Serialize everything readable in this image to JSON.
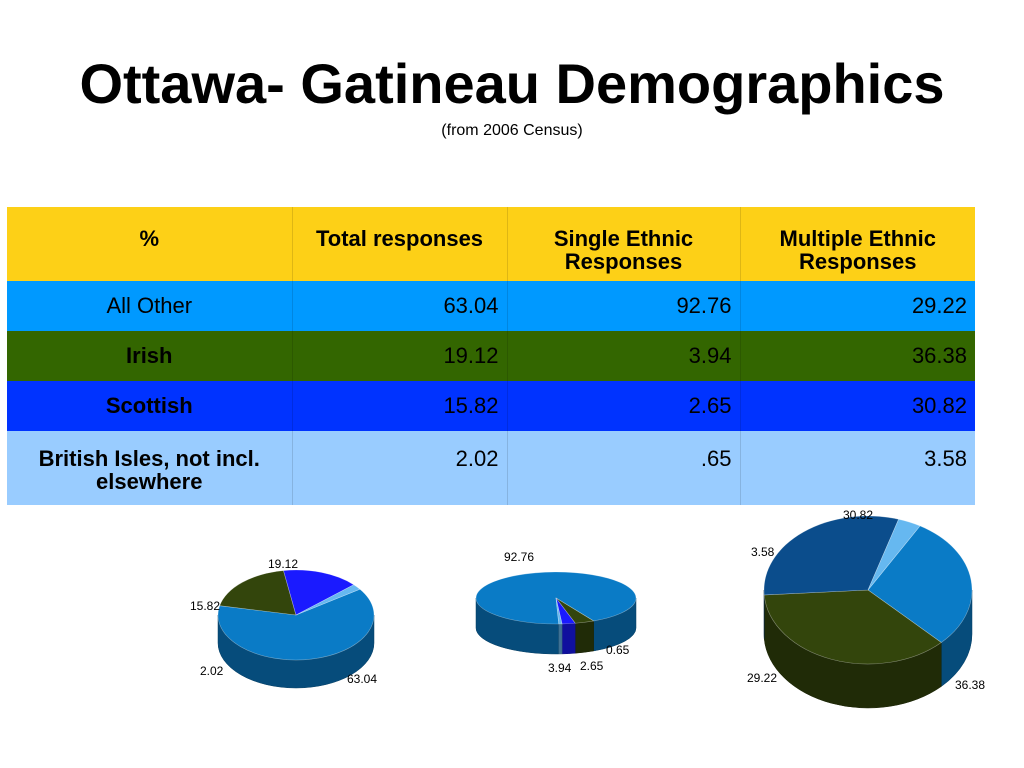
{
  "slide": {
    "title": "Ottawa- Gatineau Demographics",
    "subtitle": "(from 2006 Census)"
  },
  "colors": {
    "header_bg": "#fdd017",
    "row_bg": [
      "#0099ff",
      "#336600",
      "#0033ff",
      "#99ccff"
    ],
    "slice_all_other": "#0a7bc6",
    "slice_irish": "#33450c",
    "slice_scottish": "#1a1aff",
    "slice_british": "#66b8f0",
    "slice_scottish_chart3": "#0b4d8c"
  },
  "table": {
    "headers": [
      "%",
      "Total responses",
      "Single Ethnic\nResponses",
      "Multiple Ethnic\nResponses"
    ],
    "rows": [
      {
        "label": "All Other",
        "bold": false,
        "values": [
          "63.04",
          "92.76",
          "29.22"
        ]
      },
      {
        "label": "Irish",
        "bold": true,
        "values": [
          "19.12",
          "3.94",
          "36.38"
        ]
      },
      {
        "label": "Scottish",
        "bold": true,
        "values": [
          "15.82",
          "2.65",
          "30.82"
        ]
      },
      {
        "label": "British Isles, not incl. elsewhere",
        "bold": true,
        "values": [
          "2.02",
          ".65",
          "3.58"
        ]
      }
    ]
  },
  "chart_data": [
    {
      "type": "pie",
      "title": "",
      "categories": [
        "All Other",
        "Irish",
        "Scottish",
        "British Isles, not incl. elsewhere"
      ],
      "values": [
        63.04,
        19.12,
        15.82,
        2.02
      ],
      "labels": [
        "63.04",
        "19.12",
        "15.82",
        "2.02"
      ]
    },
    {
      "type": "pie",
      "title": "",
      "categories": [
        "All Other",
        "Irish",
        "Scottish",
        "British Isles, not incl. elsewhere"
      ],
      "values": [
        92.76,
        3.94,
        2.65,
        0.65
      ],
      "labels": [
        "92.76",
        "3.94",
        "2.65",
        "0.65"
      ]
    },
    {
      "type": "pie",
      "title": "",
      "categories": [
        "All Other",
        "Irish",
        "Scottish",
        "British Isles, not incl. elsewhere"
      ],
      "values": [
        29.22,
        36.38,
        30.82,
        3.58
      ],
      "labels": [
        "29.22",
        "36.38",
        "30.82",
        "3.58"
      ]
    }
  ]
}
